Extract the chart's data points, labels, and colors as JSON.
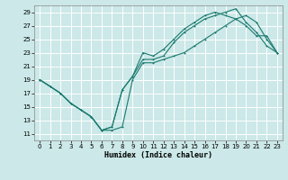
{
  "xlabel": "Humidex (Indice chaleur)",
  "xlim": [
    -0.5,
    23.5
  ],
  "ylim": [
    10,
    30
  ],
  "xticks": [
    0,
    1,
    2,
    3,
    4,
    5,
    6,
    7,
    8,
    9,
    10,
    11,
    12,
    13,
    14,
    15,
    16,
    17,
    18,
    19,
    20,
    21,
    22,
    23
  ],
  "yticks": [
    11,
    13,
    15,
    17,
    19,
    21,
    23,
    25,
    27,
    29
  ],
  "bg_color": "#cce8e8",
  "grid_color": "#ffffff",
  "line_color": "#1a7a6e",
  "line1_x": [
    0,
    1,
    2,
    3,
    4,
    5,
    6,
    7,
    8,
    9,
    10,
    11,
    12,
    13,
    14,
    15,
    16,
    17,
    18,
    19,
    20,
    21,
    22,
    23
  ],
  "line1_y": [
    19.0,
    18.0,
    17.0,
    15.5,
    14.5,
    13.5,
    11.5,
    12.0,
    17.5,
    19.5,
    23.0,
    22.5,
    23.5,
    25.0,
    26.5,
    27.5,
    28.5,
    29.0,
    28.5,
    28.0,
    27.0,
    25.5,
    25.5,
    23.0
  ],
  "line2_x": [
    0,
    1,
    2,
    3,
    4,
    5,
    6,
    7,
    8,
    9,
    10,
    11,
    12,
    13,
    14,
    15,
    16,
    17,
    18,
    19,
    20,
    21,
    22,
    23
  ],
  "line2_y": [
    19.0,
    18.0,
    17.0,
    15.5,
    14.5,
    13.5,
    11.5,
    12.0,
    17.5,
    19.5,
    22.0,
    22.0,
    22.5,
    24.5,
    26.0,
    27.0,
    28.0,
    28.5,
    29.0,
    29.5,
    27.5,
    26.0,
    24.0,
    23.0
  ],
  "line3_x": [
    0,
    1,
    2,
    3,
    4,
    5,
    6,
    7,
    8,
    9,
    10,
    11,
    12,
    13,
    14,
    15,
    16,
    17,
    18,
    19,
    20,
    21,
    22,
    23
  ],
  "line3_y": [
    19.0,
    18.0,
    17.0,
    15.5,
    14.5,
    13.5,
    11.5,
    11.5,
    12.0,
    19.0,
    21.5,
    21.5,
    22.0,
    22.5,
    23.0,
    24.0,
    25.0,
    26.0,
    27.0,
    28.0,
    28.5,
    27.5,
    25.0,
    23.0
  ]
}
